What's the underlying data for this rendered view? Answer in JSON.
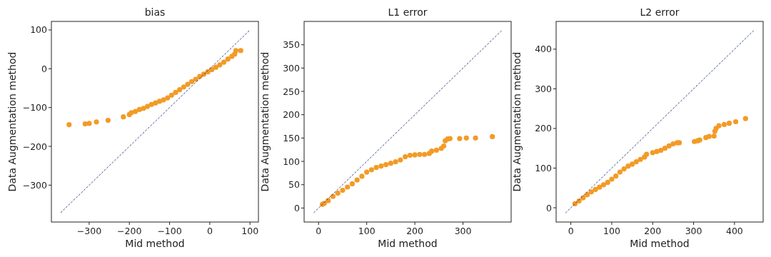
{
  "chart_data": [
    {
      "type": "scatter",
      "title": "bias",
      "xlabel": "Mid method",
      "ylabel": "Data Augmentation method",
      "xlim": [
        -394,
        121
      ],
      "ylim": [
        -395,
        122
      ],
      "xticks": [
        -300,
        -200,
        -100,
        0,
        100
      ],
      "yticks": [
        -300,
        -200,
        -100,
        0,
        100
      ],
      "grid": false,
      "marker": "circle",
      "series": [
        {
          "color": "#f29b26",
          "x": [
            -350,
            -310,
            -300,
            -282,
            -253,
            -215,
            -200,
            -195,
            -185,
            -175,
            -165,
            -155,
            -145,
            -135,
            -125,
            -115,
            -105,
            -95,
            -85,
            -75,
            -65,
            -55,
            -45,
            -35,
            -25,
            -15,
            -5,
            5,
            15,
            25,
            35,
            45,
            55,
            62,
            65,
            77
          ],
          "values": [
            -144,
            -142,
            -141,
            -137,
            -133,
            -124,
            -118,
            -113,
            -110,
            -105,
            -102,
            -97,
            -92,
            -88,
            -84,
            -80,
            -75,
            -68,
            -61,
            -54,
            -47,
            -40,
            -33,
            -27,
            -20,
            -14,
            -8,
            -2,
            4,
            10,
            17,
            25,
            32,
            38,
            47,
            47
          ]
        },
        {
          "type": "line",
          "color": "#2a3a80",
          "line_style": "dashed",
          "marker": "none",
          "x": [
            -371,
            98
          ],
          "values": [
            -371,
            98
          ]
        }
      ]
    },
    {
      "type": "scatter",
      "title": "L1 error",
      "xlabel": "Mid method",
      "ylabel": "Data Augmentation method",
      "xlim": [
        -30,
        400
      ],
      "ylim": [
        -30,
        400
      ],
      "xticks": [
        0,
        100,
        200,
        300
      ],
      "yticks": [
        0,
        50,
        100,
        150,
        200,
        250,
        300,
        350
      ],
      "grid": false,
      "marker": "circle",
      "series": [
        {
          "color": "#f29b26",
          "x": [
            8,
            12,
            20,
            30,
            40,
            50,
            60,
            70,
            80,
            90,
            100,
            110,
            120,
            130,
            140,
            150,
            160,
            170,
            180,
            190,
            200,
            210,
            220,
            230,
            235,
            245,
            255,
            260,
            263,
            268,
            273,
            293,
            307,
            326,
            361
          ],
          "values": [
            8,
            10,
            16,
            25,
            32,
            38,
            45,
            52,
            60,
            68,
            77,
            82,
            87,
            90,
            93,
            96,
            99,
            103,
            110,
            113,
            114,
            115,
            115,
            117,
            122,
            124,
            128,
            133,
            144,
            148,
            149,
            149,
            150,
            150,
            153
          ]
        },
        {
          "type": "line",
          "color": "#2a3a80",
          "line_style": "dashed",
          "marker": "none",
          "x": [
            -10,
            380
          ],
          "values": [
            -10,
            380
          ]
        }
      ]
    },
    {
      "type": "scatter",
      "title": "L2 error",
      "xlabel": "Mid method",
      "ylabel": "Data Augmentation method",
      "xlim": [
        -36,
        470
      ],
      "ylim": [
        -36,
        470
      ],
      "xticks": [
        0,
        100,
        200,
        300,
        400
      ],
      "yticks": [
        0,
        100,
        200,
        300,
        400
      ],
      "grid": false,
      "marker": "circle",
      "series": [
        {
          "color": "#f29b26",
          "x": [
            10,
            20,
            30,
            40,
            50,
            60,
            70,
            80,
            90,
            100,
            110,
            120,
            130,
            140,
            150,
            160,
            170,
            180,
            185,
            200,
            210,
            220,
            230,
            240,
            250,
            260,
            265,
            302,
            310,
            315,
            330,
            338,
            350,
            352,
            355,
            362,
            375,
            387,
            403,
            427
          ],
          "values": [
            10,
            17,
            25,
            33,
            40,
            46,
            52,
            58,
            64,
            72,
            80,
            90,
            98,
            105,
            110,
            116,
            122,
            128,
            135,
            139,
            142,
            145,
            150,
            156,
            161,
            164,
            164,
            167,
            169,
            171,
            177,
            180,
            181,
            193,
            200,
            207,
            210,
            213,
            217,
            225
          ]
        },
        {
          "type": "line",
          "color": "#2a3a80",
          "line_style": "dashed",
          "marker": "none",
          "x": [
            -13,
            447
          ],
          "values": [
            -13,
            447
          ]
        }
      ]
    }
  ]
}
